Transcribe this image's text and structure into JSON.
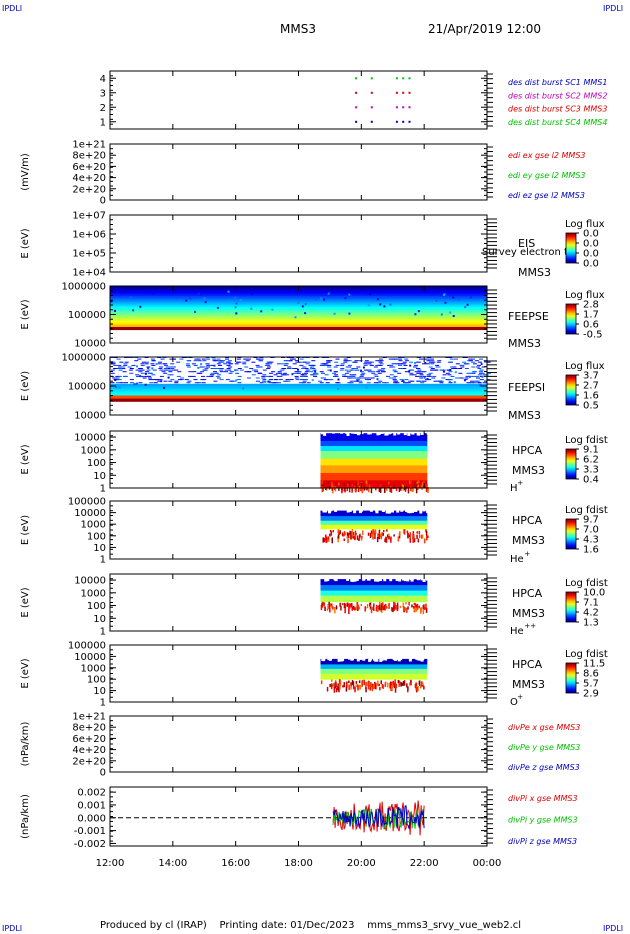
{
  "corner_label": "IPDLI",
  "header": {
    "spacecraft": "MMS3",
    "datetime": "21/Apr/2019 12:00"
  },
  "footer": "Produced by cl (IRAP)    Printing date: 01/Dec/2023    mms_mms3_srvy_vue_web2.cl",
  "colors": {
    "red": "#e00000",
    "green": "#00c000",
    "blue": "#0000c0",
    "magenta": "#c000c0"
  },
  "time_axis": {
    "ticks": [
      "12:00",
      "14:00",
      "16:00",
      "18:00",
      "20:00",
      "22:00",
      "00:00"
    ],
    "range_hours": [
      12,
      24
    ]
  },
  "chart_data": [
    {
      "type": "scatter",
      "id": "burst",
      "ylabel": "",
      "yticks": [
        "4",
        "3",
        "2",
        "1"
      ],
      "ylim": [
        0.5,
        4.5
      ],
      "legend": [
        {
          "text": "des dist burst SC1 MMS1",
          "color": "#0000c0"
        },
        {
          "text": "des dist burst SC2 MMS2",
          "color": "#c000c0"
        },
        {
          "text": "des dist burst SC3 MMS3",
          "color": "#e00000"
        },
        {
          "text": "des dist burst SC4 MMS4",
          "color": "#00c000"
        }
      ],
      "series": [
        {
          "y": 4,
          "color": "#00c000",
          "x": [
            19.8,
            20.3,
            21.1,
            21.3,
            21.5
          ]
        },
        {
          "y": 3,
          "color": "#e00000",
          "x": [
            19.8,
            20.3,
            21.1,
            21.3,
            21.5
          ]
        },
        {
          "y": 2,
          "color": "#c000c0",
          "x": [
            19.8,
            20.3,
            21.1,
            21.3,
            21.5
          ]
        },
        {
          "y": 1,
          "color": "#0000c0",
          "x": [
            19.8,
            20.3,
            21.1,
            21.3,
            21.5
          ]
        }
      ]
    },
    {
      "type": "line",
      "id": "edi",
      "ylabel": "(mV/m)",
      "yticks": [
        "1e+21",
        "8e+20",
        "6e+20",
        "4e+20",
        "2e+20",
        "0"
      ],
      "ylim": [
        0,
        1e+21
      ],
      "legend": [
        {
          "text": "edi ex gse l2 MMS3",
          "color": "#e00000"
        },
        {
          "text": "edi ey gse l2 MMS3",
          "color": "#00c000"
        },
        {
          "text": "edi ez gse l2 MMS3",
          "color": "#0000c0"
        }
      ]
    },
    {
      "type": "heatmap",
      "id": "eis",
      "ylabel": "E (eV)",
      "yticks": [
        "1e+07",
        "1e+06",
        "1e+05",
        "1e+04"
      ],
      "ylim": [
        10000.0,
        10000000.0
      ],
      "labels": [
        "EIS",
        "MMS3"
      ],
      "overlay_text": "Survey electron to",
      "colorbar_title": "Log flux",
      "colorbar_ticks": [
        "0.0",
        "0.0",
        "0.0",
        "0.0"
      ]
    },
    {
      "type": "heatmap",
      "id": "feepse",
      "ylabel": "E (eV)",
      "yticks": [
        "1000000",
        "100000",
        "10000"
      ],
      "ylim": [
        10000.0,
        1000000.0
      ],
      "labels": [
        "FEEPSE",
        "MMS3"
      ],
      "colorbar_title": "Log flux",
      "colorbar_ticks": [
        "2.8",
        "1.7",
        "0.6",
        "-0.5"
      ],
      "coverage_hours": [
        12,
        24
      ]
    },
    {
      "type": "heatmap",
      "id": "feepsi",
      "ylabel": "E (eV)",
      "yticks": [
        "1000000",
        "100000",
        "10000"
      ],
      "ylim": [
        10000.0,
        1000000.0
      ],
      "labels": [
        "FEEPSI",
        "MMS3"
      ],
      "colorbar_title": "Log flux",
      "colorbar_ticks": [
        "3.7",
        "2.7",
        "1.6",
        "0.5"
      ],
      "coverage_hours": [
        12,
        24
      ]
    },
    {
      "type": "heatmap",
      "id": "hpca_h",
      "ylabel": "E (eV)",
      "yticks": [
        "10000",
        "1000",
        "100",
        "10",
        "1"
      ],
      "ylim": [
        1,
        30000.0
      ],
      "labels": [
        "HPCA",
        "MMS3"
      ],
      "species": "H",
      "species_sup": "+",
      "colorbar_title": "Log fdist",
      "colorbar_ticks": [
        "9.1",
        "6.2",
        "3.3",
        "0.4"
      ],
      "coverage_hours": [
        18.7,
        22.1
      ]
    },
    {
      "type": "heatmap",
      "id": "hpca_he",
      "ylabel": "E (eV)",
      "yticks": [
        "100000",
        "10000",
        "1000",
        "100",
        "10",
        "1"
      ],
      "ylim": [
        1,
        100000.0
      ],
      "labels": [
        "HPCA",
        "MMS3"
      ],
      "species": "He",
      "species_sup": "+",
      "colorbar_title": "Log fdist",
      "colorbar_ticks": [
        "9.7",
        "7.0",
        "4.3",
        "1.6"
      ],
      "coverage_hours": [
        18.7,
        22.1
      ]
    },
    {
      "type": "heatmap",
      "id": "hpca_he2",
      "ylabel": "E (eV)",
      "yticks": [
        "10000",
        "1000",
        "100",
        "10",
        "1"
      ],
      "ylim": [
        1,
        30000.0
      ],
      "labels": [
        "HPCA",
        "MMS3"
      ],
      "species": "He",
      "species_sup": "++",
      "colorbar_title": "Log fdist",
      "colorbar_ticks": [
        "10.0",
        "7.1",
        "4.2",
        "1.3"
      ],
      "coverage_hours": [
        18.7,
        22.1
      ]
    },
    {
      "type": "heatmap",
      "id": "hpca_o",
      "ylabel": "E (eV)",
      "yticks": [
        "100000",
        "10000",
        "1000",
        "100",
        "10",
        "1"
      ],
      "ylim": [
        1,
        100000.0
      ],
      "labels": [
        "HPCA",
        "MMS3"
      ],
      "species": "O",
      "species_sup": "+",
      "colorbar_title": "Log fdist",
      "colorbar_ticks": [
        "11.5",
        "8.6",
        "5.7",
        "2.9"
      ],
      "coverage_hours": [
        18.7,
        22.1
      ]
    },
    {
      "type": "line",
      "id": "divpe",
      "ylabel": "(nPa/km)",
      "yticks": [
        "1e+21",
        "8e+20",
        "6e+20",
        "4e+20",
        "2e+20",
        "0"
      ],
      "ylim": [
        0,
        1e+21
      ],
      "legend": [
        {
          "text": "divPe x gse MMS3",
          "color": "#e00000"
        },
        {
          "text": "divPe y gse MMS3",
          "color": "#00c000"
        },
        {
          "text": "divPe z gse MMS3",
          "color": "#0000c0"
        }
      ]
    },
    {
      "type": "line",
      "id": "divpi",
      "ylabel": "(nPa/km)",
      "yticks": [
        "0.002",
        "0.001",
        "0.000",
        "-0.001",
        "-0.002"
      ],
      "ylim": [
        -0.0022,
        0.0024
      ],
      "legend": [
        {
          "text": "divPi x gse MMS3",
          "color": "#e00000"
        },
        {
          "text": "divPi y gse MMS3",
          "color": "#00c000"
        },
        {
          "text": "divPi z gse MMS3",
          "color": "#0000c0"
        }
      ],
      "coverage_hours": [
        19.1,
        22.0
      ]
    }
  ]
}
